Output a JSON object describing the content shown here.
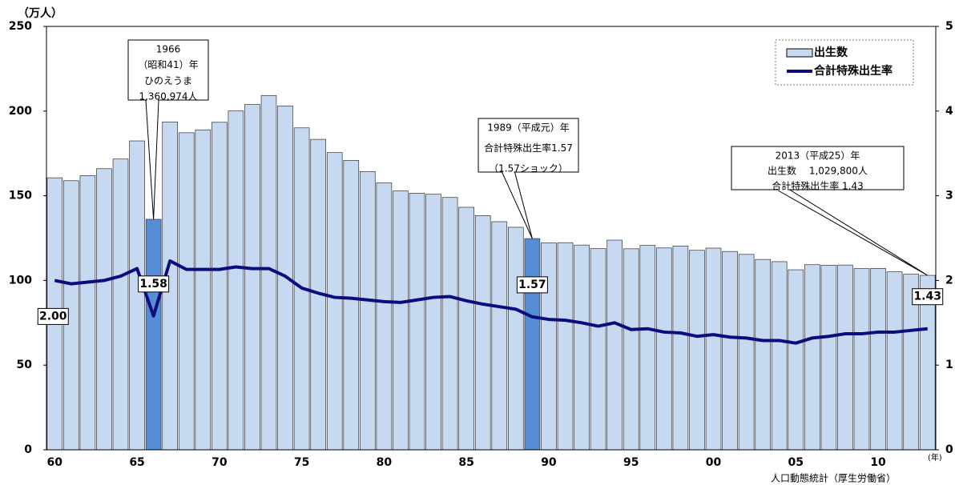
{
  "chart_data": {
    "type": "bar-line",
    "y_unit": "（万人）",
    "x_unit": "(年)",
    "source": "人口動態統計（厚生労働省）",
    "categories": [
      "60",
      null,
      null,
      null,
      null,
      "65",
      null,
      null,
      null,
      null,
      "70",
      null,
      null,
      null,
      null,
      "75",
      null,
      null,
      null,
      null,
      "80",
      null,
      null,
      null,
      null,
      "85",
      null,
      null,
      null,
      null,
      "90",
      null,
      null,
      null,
      null,
      "95",
      null,
      null,
      null,
      null,
      "00",
      null,
      null,
      null,
      null,
      "05",
      null,
      null,
      null,
      null,
      "10",
      null,
      null,
      null
    ],
    "series": [
      {
        "name": "出生数",
        "type": "bar",
        "color": "#c6d9f1",
        "colors": [
          "#c6d9f1",
          "#c6d9f1",
          "#c6d9f1",
          "#c6d9f1",
          "#c6d9f1",
          "#c6d9f1",
          "#558ed5",
          "#c6d9f1",
          "#c6d9f1",
          "#c6d9f1",
          "#c6d9f1",
          "#c6d9f1",
          "#c6d9f1",
          "#c6d9f1",
          "#c6d9f1",
          "#c6d9f1",
          "#c6d9f1",
          "#c6d9f1",
          "#c6d9f1",
          "#c6d9f1",
          "#c6d9f1",
          "#c6d9f1",
          "#c6d9f1",
          "#c6d9f1",
          "#c6d9f1",
          "#c6d9f1",
          "#c6d9f1",
          "#c6d9f1",
          "#c6d9f1",
          "#558ed5",
          "#c6d9f1",
          "#c6d9f1",
          "#c6d9f1",
          "#c6d9f1",
          "#c6d9f1",
          "#c6d9f1",
          "#c6d9f1",
          "#c6d9f1",
          "#c6d9f1",
          "#c6d9f1",
          "#c6d9f1",
          "#c6d9f1",
          "#c6d9f1",
          "#c6d9f1",
          "#c6d9f1",
          "#c6d9f1",
          "#c6d9f1",
          "#c6d9f1",
          "#c6d9f1",
          "#c6d9f1",
          "#c6d9f1",
          "#c6d9f1",
          "#c6d9f1",
          "#c6d9f1"
        ],
        "values": [
          160.6,
          158.9,
          161.9,
          166.0,
          171.7,
          182.4,
          136.1,
          193.6,
          187.2,
          188.9,
          193.4,
          200.1,
          203.9,
          209.2,
          203.0,
          190.1,
          183.3,
          175.5,
          170.9,
          164.3,
          157.7,
          152.9,
          151.5,
          150.9,
          149.0,
          143.2,
          138.3,
          134.7,
          131.4,
          124.7,
          122.2,
          122.3,
          120.9,
          118.8,
          123.8,
          118.7,
          120.7,
          119.2,
          120.3,
          117.8,
          119.1,
          117.1,
          115.4,
          112.4,
          111.1,
          106.3,
          109.3,
          109.0,
          109.1,
          107.0,
          107.1,
          105.1,
          103.7,
          103.0
        ]
      },
      {
        "name": "合計特殊出生率",
        "type": "line",
        "axis": "y2",
        "color": "#0c0c80",
        "values": [
          2.0,
          1.96,
          1.98,
          2.0,
          2.05,
          2.14,
          1.58,
          2.23,
          2.13,
          2.13,
          2.13,
          2.16,
          2.14,
          2.14,
          2.05,
          1.91,
          1.85,
          1.8,
          1.79,
          1.77,
          1.75,
          1.74,
          1.77,
          1.8,
          1.81,
          1.76,
          1.72,
          1.69,
          1.66,
          1.57,
          1.54,
          1.53,
          1.5,
          1.46,
          1.5,
          1.42,
          1.43,
          1.39,
          1.38,
          1.34,
          1.36,
          1.33,
          1.32,
          1.29,
          1.29,
          1.26,
          1.32,
          1.34,
          1.37,
          1.37,
          1.39,
          1.39,
          1.41,
          1.43
        ],
        "value_labels": [
          "2.00",
          null,
          null,
          null,
          null,
          null,
          "1.58",
          null,
          null,
          null,
          null,
          null,
          null,
          null,
          null,
          null,
          null,
          null,
          null,
          null,
          null,
          null,
          null,
          null,
          null,
          null,
          null,
          null,
          null,
          "1.57",
          null,
          null,
          null,
          null,
          null,
          null,
          null,
          null,
          null,
          null,
          null,
          null,
          null,
          null,
          null,
          null,
          null,
          null,
          null,
          null,
          null,
          null,
          null,
          "1.43"
        ]
      }
    ],
    "ylim": [
      0,
      250
    ],
    "yticks": [
      0,
      50,
      100,
      150,
      200,
      250
    ],
    "y2lim": [
      0,
      5
    ],
    "y2ticks": [
      0,
      1,
      2,
      3,
      4,
      5
    ],
    "annotations": [
      {
        "lines": [
          "1966",
          "（昭和41）年",
          "ひのえうま",
          "1,360,974人"
        ]
      },
      {
        "lines": [
          "1989（平成元）年",
          "合計特殊出生率1.57",
          "（1.57ショック）"
        ]
      },
      {
        "lines": [
          "2013（平成25）年",
          "出生数　 1,029,800人",
          "合計特殊出生率  1.43"
        ]
      }
    ]
  }
}
